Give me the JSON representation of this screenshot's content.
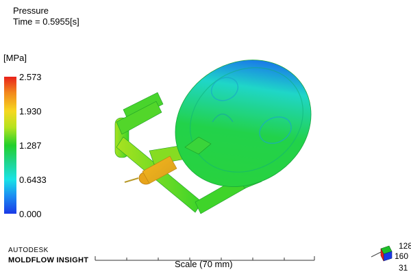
{
  "header": {
    "result_name": "Pressure",
    "time_text": "Time = 0.5955[s]"
  },
  "legend": {
    "unit": "[MPa]",
    "labels": [
      "2.573",
      "1.930",
      "1.287",
      "0.6433",
      "0.000"
    ],
    "colors": {
      "max": "#e8221b",
      "mid": "#22d02a",
      "min": "#1a39e6"
    }
  },
  "brand": {
    "line1": "AUTODESK",
    "line2": "MOLDFLOW INSIGHT"
  },
  "scale": {
    "label": "Scale (70 mm)"
  },
  "triad": {
    "x_value": "128",
    "y_value": "160",
    "z_value": "31",
    "icon": "axis-triad-icon"
  },
  "model": {
    "icon": "molded-part-3d-icon"
  }
}
